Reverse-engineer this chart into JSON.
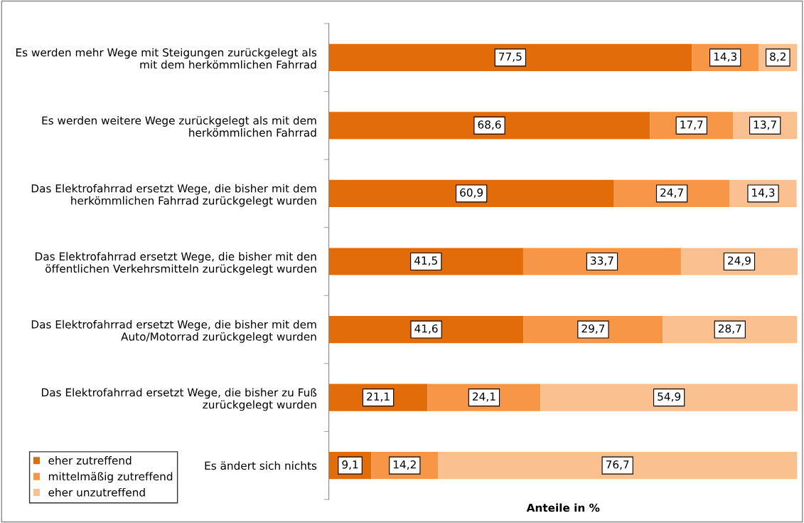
{
  "chart_data": {
    "type": "bar",
    "orientation": "horizontal",
    "stacked": true,
    "xlabel": "Anteile in %",
    "categories": [
      "Es werden mehr Wege mit Steigungen zurückgelegt als\nmit dem herkömmlichen Fahrrad",
      "Es werden weitere Wege zurückgelegt als mit dem\nherkömmlichen Fahrrad",
      "Das Elektrofahrrad ersetzt Wege, die bisher mit dem\nherkömmlichen Fahrrad zurückgelegt wurden",
      "Das Elektrofahrrad ersetzt Wege, die bisher mit den\nöffentlichen Verkehrsmitteln zurückgelegt wurden",
      "Das Elektrofahrrad ersetzt Wege, die bisher mit dem\nAuto/Motorrad zurückgelegt wurden",
      "Das Elektrofahrrad ersetzt Wege, die bisher zu Fuß\nzurückgelegt wurden",
      "Es ändert sich nichts"
    ],
    "series": [
      {
        "name": "eher zutreffend",
        "color": "#e36c0a",
        "values": [
          77.5,
          68.6,
          60.9,
          41.5,
          41.6,
          21.1,
          9.1
        ],
        "value_labels": [
          "77,5",
          "68,6",
          "60,9",
          "41,5",
          "41,6",
          "21,1",
          "9,1"
        ]
      },
      {
        "name": "mittelmäßig zutreffend",
        "color": "#f79646",
        "values": [
          14.3,
          17.7,
          24.7,
          33.7,
          29.7,
          24.1,
          14.2
        ],
        "value_labels": [
          "14,3",
          "17,7",
          "24,7",
          "33,7",
          "29,7",
          "24,1",
          "14,2"
        ]
      },
      {
        "name": "eher unzutreffend",
        "color": "#fac090",
        "values": [
          8.2,
          13.7,
          14.3,
          24.9,
          28.7,
          54.9,
          76.7
        ],
        "value_labels": [
          "8,2",
          "13,7",
          "14,3",
          "24,9",
          "28,7",
          "54,9",
          "76,7"
        ]
      }
    ],
    "xlim": [
      0,
      100.1
    ],
    "tick_labels": "y",
    "grid": false,
    "legend": "bottom left"
  }
}
